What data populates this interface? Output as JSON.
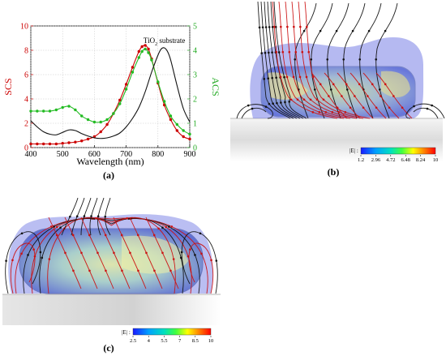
{
  "chart_data": [
    {
      "id": "a",
      "type": "line",
      "panel_label": "(a)",
      "xlabel": "Wavelength (nm)",
      "ylabel_left": "SCS",
      "ylabel_right": "ACS",
      "xlim": [
        400,
        900
      ],
      "ylim_left": [
        0,
        10
      ],
      "ylim_right": [
        0,
        5
      ],
      "xticks": [
        400,
        500,
        600,
        700,
        800,
        900
      ],
      "yticks_left": [
        0,
        2,
        4,
        6,
        8,
        10
      ],
      "yticks_right": [
        0,
        1,
        2,
        3,
        4,
        5
      ],
      "annotation": {
        "text": "TiO",
        "sub": "2",
        "tail": " substrate",
        "x": 820,
        "y": 8.6
      },
      "colors": {
        "scs": "#cc0000",
        "acs": "#22bb22",
        "substrate": "#111111",
        "left_axis": "#cc0000",
        "right_axis": "#22aa22"
      },
      "series": [
        {
          "key": "scs",
          "axis": "left",
          "marker": "circle",
          "x": [
            400,
            420,
            440,
            460,
            480,
            500,
            520,
            540,
            560,
            580,
            600,
            620,
            640,
            660,
            680,
            700,
            720,
            740,
            750,
            760,
            770,
            780,
            800,
            820,
            840,
            860,
            880,
            900
          ],
          "y": [
            0.3,
            0.3,
            0.3,
            0.3,
            0.3,
            0.35,
            0.4,
            0.45,
            0.55,
            0.7,
            0.9,
            1.3,
            1.9,
            2.8,
            3.9,
            5.2,
            6.6,
            7.9,
            8.3,
            8.4,
            8.1,
            7.3,
            5.3,
            3.5,
            2.3,
            1.4,
            0.9,
            0.7
          ]
        },
        {
          "key": "acs",
          "axis": "right",
          "marker": "circle",
          "x": [
            400,
            420,
            440,
            460,
            480,
            500,
            520,
            540,
            560,
            580,
            600,
            620,
            640,
            660,
            680,
            700,
            720,
            740,
            750,
            760,
            770,
            780,
            800,
            820,
            840,
            860,
            880,
            900
          ],
          "y": [
            1.5,
            1.5,
            1.5,
            1.5,
            1.55,
            1.65,
            1.7,
            1.55,
            1.3,
            1.15,
            1.05,
            1.05,
            1.15,
            1.4,
            1.8,
            2.4,
            3.1,
            3.7,
            3.95,
            4.05,
            3.9,
            3.6,
            2.7,
            1.9,
            1.3,
            0.95,
            0.7,
            0.55
          ]
        },
        {
          "key": "substrate",
          "axis": "left",
          "marker": "none",
          "x": [
            400,
            420,
            440,
            460,
            480,
            500,
            520,
            540,
            560,
            580,
            600,
            620,
            640,
            660,
            680,
            700,
            720,
            740,
            760,
            780,
            800,
            810,
            820,
            830,
            840,
            860,
            880,
            900
          ],
          "y": [
            2.2,
            1.7,
            1.3,
            1.1,
            1.05,
            1.25,
            1.45,
            1.4,
            1.15,
            0.95,
            0.8,
            0.75,
            0.8,
            0.95,
            1.2,
            1.7,
            2.4,
            3.3,
            4.6,
            6.2,
            7.6,
            8.1,
            8.2,
            7.9,
            7.2,
            5.1,
            3.2,
            2.1
          ]
        }
      ]
    },
    {
      "id": "b",
      "type": "heatmap",
      "panel_label": "(b)",
      "colorbar": {
        "title": "|E| :",
        "ticks": [
          "1.2",
          "2.96",
          "4.72",
          "6.48",
          "8.24",
          "10"
        ],
        "range": [
          1.2,
          10
        ]
      }
    },
    {
      "id": "c",
      "type": "heatmap",
      "panel_label": "(c)",
      "colorbar": {
        "title": "|E| :",
        "ticks": [
          "2.5",
          "4",
          "5.5",
          "7",
          "8.5",
          "10"
        ],
        "range": [
          2.5,
          10
        ]
      }
    }
  ]
}
